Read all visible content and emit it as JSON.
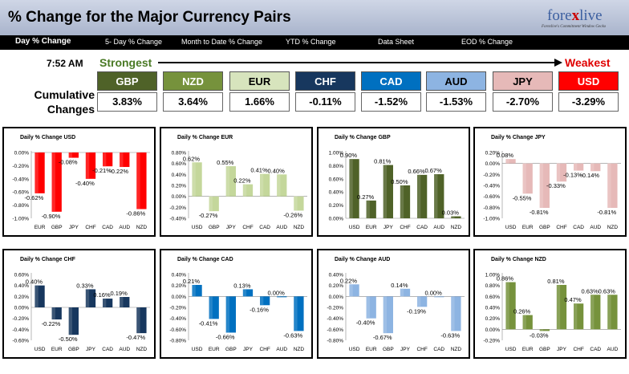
{
  "header": {
    "title": "% Change for the Major Currency Pairs",
    "logo_forex": "fore",
    "logo_x": "x",
    "logo_live": "live",
    "tagline": "Forexlive's Commitment Window Gecko"
  },
  "tabs": [
    {
      "label": "Day % Change"
    },
    {
      "label": "5- Day % Change"
    },
    {
      "label": "Month to Date % Change"
    },
    {
      "label": "YTD % Change"
    },
    {
      "label": "Data Sheet"
    },
    {
      "label": "EOD % Change"
    }
  ],
  "ranking": {
    "time": "7:52 AM",
    "strongest": "Strongest",
    "weakest": "Weakest",
    "cumulative_label": "Cumulative Changes",
    "currencies": [
      {
        "code": "GBP",
        "value": "3.83%",
        "bg": "#4f6228",
        "fg": "#ffffff"
      },
      {
        "code": "NZD",
        "value": "3.64%",
        "bg": "#76923c",
        "fg": "#ffffff"
      },
      {
        "code": "EUR",
        "value": "1.66%",
        "bg": "#d7e4bd",
        "fg": "#000000"
      },
      {
        "code": "CHF",
        "value": "-0.11%",
        "bg": "#17375e",
        "fg": "#ffffff"
      },
      {
        "code": "CAD",
        "value": "-1.52%",
        "bg": "#0070c0",
        "fg": "#ffffff"
      },
      {
        "code": "AUD",
        "value": "-1.53%",
        "bg": "#8db4e2",
        "fg": "#000000"
      },
      {
        "code": "JPY",
        "value": "-2.70%",
        "bg": "#e6b9b8",
        "fg": "#000000"
      },
      {
        "code": "USD",
        "value": "-3.29%",
        "bg": "#ff0000",
        "fg": "#ffffff"
      }
    ]
  },
  "chart_data": [
    {
      "type": "bar",
      "title": "Daily % Change USD",
      "color": "#ff0000",
      "categories": [
        "EUR",
        "GBP",
        "JPY",
        "CHF",
        "CAD",
        "AUD",
        "NZD"
      ],
      "values": [
        -0.62,
        -0.9,
        -0.08,
        -0.4,
        -0.21,
        -0.22,
        -0.86
      ],
      "labels": [
        "-0.62%",
        "-0.90%",
        "-0.08%",
        "-0.40%",
        "-0.21%",
        "-0.22%",
        "-0.86%"
      ],
      "yticks": [
        "0.00%",
        "-0.20%",
        "-0.40%",
        "-0.60%",
        "-0.80%",
        "-1.00%"
      ],
      "ylim": [
        -1.0,
        0.0
      ]
    },
    {
      "type": "bar",
      "title": "Daily % Change EUR",
      "color": "#c4d79b",
      "categories": [
        "USD",
        "GBP",
        "JPY",
        "CHF",
        "CAD",
        "AUD",
        "NZD"
      ],
      "values": [
        0.62,
        -0.27,
        0.55,
        0.22,
        0.41,
        0.4,
        -0.26
      ],
      "labels": [
        "0.62%",
        "-0.27%",
        "0.55%",
        "0.22%",
        "0.41%",
        "0.40%",
        "-0.26%"
      ],
      "yticks": [
        "0.80%",
        "0.60%",
        "0.40%",
        "0.20%",
        "0.00%",
        "-0.20%",
        "-0.40%"
      ],
      "ylim": [
        -0.4,
        0.8
      ]
    },
    {
      "type": "bar",
      "title": "Daily % Change GBP",
      "color": "#4f6228",
      "categories": [
        "USD",
        "EUR",
        "JPY",
        "CHF",
        "CAD",
        "AUD",
        "NZD"
      ],
      "values": [
        0.9,
        0.27,
        0.81,
        0.5,
        0.66,
        0.67,
        0.03
      ],
      "labels": [
        "0.90%",
        "0.27%",
        "0.81%",
        "0.50%",
        "0.66%",
        "0.67%",
        "0.03%"
      ],
      "yticks": [
        "1.00%",
        "0.80%",
        "0.60%",
        "0.40%",
        "0.20%",
        "0.00%"
      ],
      "ylim": [
        0.0,
        1.0
      ]
    },
    {
      "type": "bar",
      "title": "Daily % Change JPY",
      "color": "#e6b9b8",
      "categories": [
        "USD",
        "EUR",
        "GBP",
        "CHF",
        "CAD",
        "AUD",
        "NZD"
      ],
      "values": [
        0.08,
        -0.55,
        -0.81,
        -0.33,
        -0.13,
        -0.14,
        -0.81
      ],
      "labels": [
        "0.08%",
        "-0.55%",
        "-0.81%",
        "-0.33%",
        "-0.13%",
        "-0.14%",
        "-0.81%"
      ],
      "yticks": [
        "0.20%",
        "0.00%",
        "-0.20%",
        "-0.40%",
        "-0.60%",
        "-0.80%",
        "-1.00%"
      ],
      "ylim": [
        -1.0,
        0.2
      ]
    },
    {
      "type": "bar",
      "title": "Daily % Change CHF",
      "color": "#17375e",
      "categories": [
        "USD",
        "EUR",
        "GBP",
        "JPY",
        "CAD",
        "AUD",
        "NZD"
      ],
      "values": [
        0.4,
        -0.22,
        -0.5,
        0.33,
        0.16,
        0.19,
        -0.47
      ],
      "labels": [
        "0.40%",
        "-0.22%",
        "-0.50%",
        "0.33%",
        "0.16%",
        "0.19%",
        "-0.47%"
      ],
      "yticks": [
        "0.60%",
        "0.40%",
        "0.20%",
        "0.00%",
        "-0.20%",
        "-0.40%",
        "-0.60%"
      ],
      "ylim": [
        -0.6,
        0.6
      ]
    },
    {
      "type": "bar",
      "title": "Daily % Change CAD",
      "color": "#0070c0",
      "categories": [
        "USD",
        "EUR",
        "GBP",
        "JPY",
        "CHF",
        "AUD",
        "NZD"
      ],
      "values": [
        0.21,
        -0.41,
        -0.66,
        0.13,
        -0.16,
        0.0,
        -0.63
      ],
      "labels": [
        "0.21%",
        "-0.41%",
        "-0.66%",
        "0.13%",
        "-0.16%",
        "0.00%",
        "-0.63%"
      ],
      "yticks": [
        "0.40%",
        "0.20%",
        "0.00%",
        "-0.20%",
        "-0.40%",
        "-0.60%",
        "-0.80%"
      ],
      "ylim": [
        -0.8,
        0.4
      ]
    },
    {
      "type": "bar",
      "title": "Daily % Change AUD",
      "color": "#8db4e2",
      "categories": [
        "USD",
        "EUR",
        "GBP",
        "JPY",
        "CHF",
        "CAD",
        "NZD"
      ],
      "values": [
        0.22,
        -0.4,
        -0.67,
        0.14,
        -0.19,
        0.0,
        -0.63
      ],
      "labels": [
        "0.22%",
        "-0.40%",
        "-0.67%",
        "0.14%",
        "-0.19%",
        "0.00%",
        "-0.63%"
      ],
      "yticks": [
        "0.40%",
        "0.20%",
        "0.00%",
        "-0.20%",
        "-0.40%",
        "-0.60%",
        "-0.80%"
      ],
      "ylim": [
        -0.8,
        0.4
      ]
    },
    {
      "type": "bar",
      "title": "Daily % Change NZD",
      "color": "#76923c",
      "categories": [
        "USD",
        "EUR",
        "GBP",
        "JPY",
        "CHF",
        "CAD",
        "AUD"
      ],
      "values": [
        0.86,
        0.26,
        -0.03,
        0.81,
        0.47,
        0.63,
        0.63
      ],
      "labels": [
        "0.86%",
        "0.26%",
        "-0.03%",
        "0.81%",
        "0.47%",
        "0.63%",
        "0.63%"
      ],
      "yticks": [
        "1.00%",
        "0.80%",
        "0.60%",
        "0.40%",
        "0.20%",
        "0.00%",
        "-0.20%"
      ],
      "ylim": [
        -0.2,
        1.0
      ]
    }
  ]
}
